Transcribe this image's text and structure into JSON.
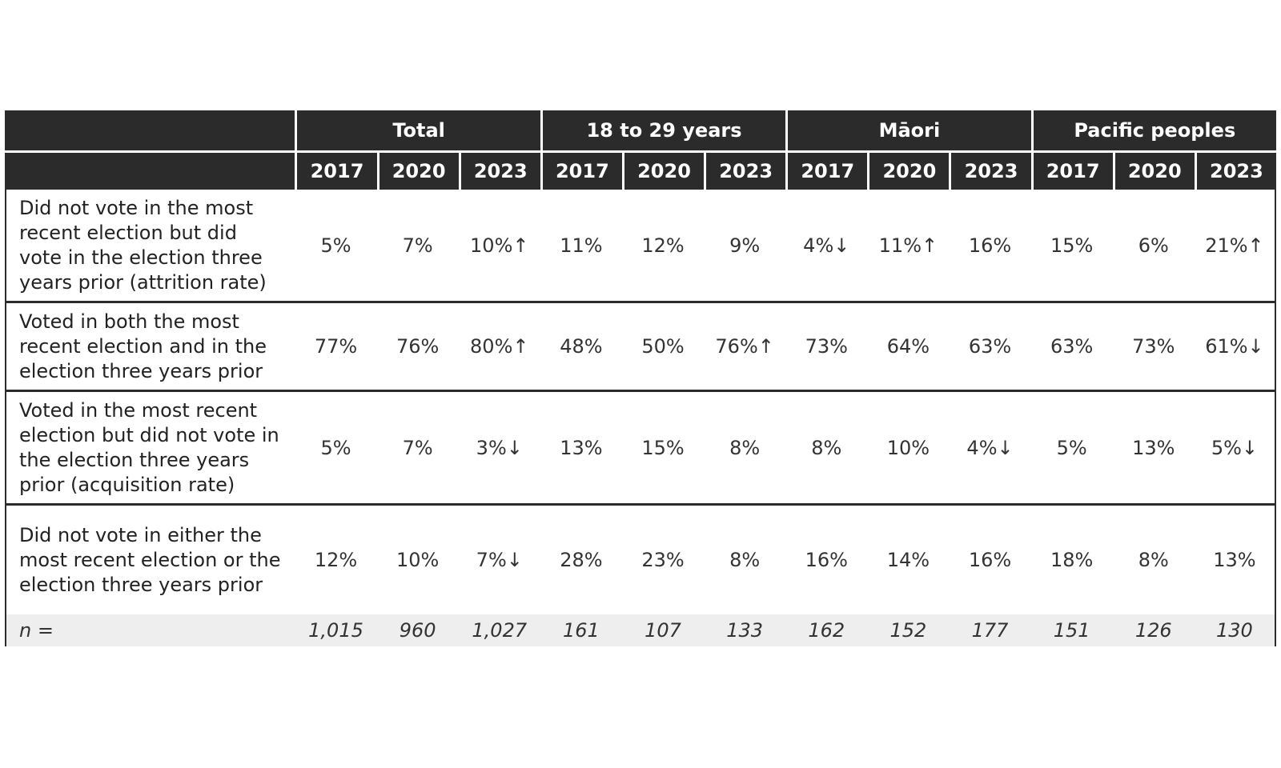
{
  "groups": [
    "Total",
    "18 to 29 years",
    "Māori",
    "Pacific peoples"
  ],
  "years": [
    "2017",
    "2020",
    "2023",
    "2017",
    "2020",
    "2023",
    "2017",
    "2020",
    "2023",
    "2017",
    "2020",
    "2023"
  ],
  "rows": [
    {
      "label": "Did not vote in the most recent election but did vote in the election three years prior (attrition rate)",
      "values": [
        "5%",
        "7%",
        "10%↑",
        "11%",
        "12%",
        "9%",
        "4%↓",
        "11%↑",
        "16%",
        "15%",
        "6%",
        "21%↑"
      ]
    },
    {
      "label": "Voted in both the most recent election and in the election three years prior",
      "values": [
        "77%",
        "76%",
        "80%↑",
        "48%",
        "50%",
        "76%↑",
        "73%",
        "64%",
        "63%",
        "63%",
        "73%",
        "61%↓"
      ]
    },
    {
      "label": "Voted in the most recent election but did not vote in the election three years prior (acquisition rate)",
      "values": [
        "5%",
        "7%",
        "3%↓",
        "13%",
        "15%",
        "8%",
        "8%",
        "10%",
        "4%↓",
        "5%",
        "13%",
        "5%↓"
      ]
    },
    {
      "label": "Did not vote in either the most recent election or the election three years prior",
      "values": [
        "12%",
        "10%",
        "7%↓",
        "28%",
        "23%",
        "8%",
        "16%",
        "14%",
        "16%",
        "18%",
        "8%",
        "13%"
      ]
    }
  ],
  "n_row": {
    "label": "n =",
    "values": [
      "1,015",
      "960",
      "1,027",
      "161",
      "107",
      "133",
      "162",
      "152",
      "177",
      "151",
      "126",
      "130"
    ]
  }
}
